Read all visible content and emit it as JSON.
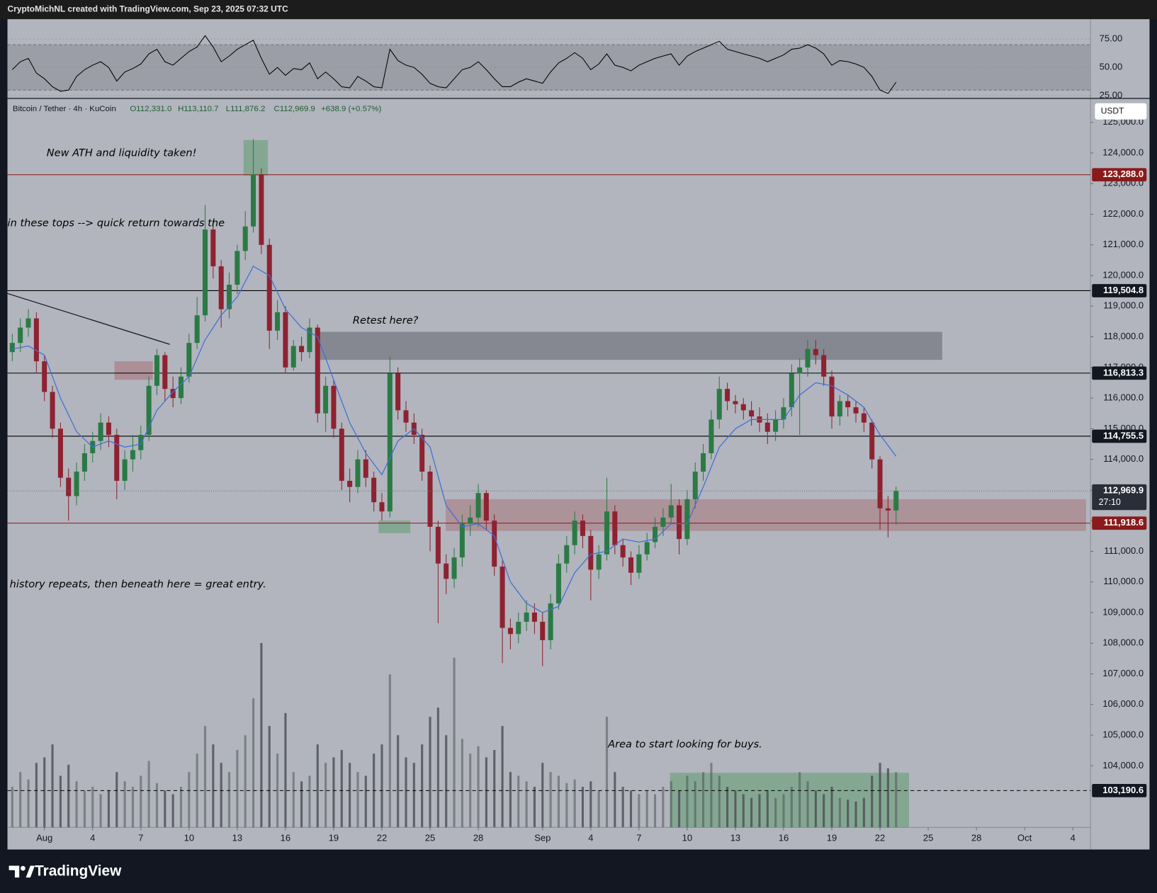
{
  "header": {
    "attribution": "CryptoMichNL created with TradingView.com, Sep 23, 2025 07:32 UTC"
  },
  "chart_data": {
    "type": "candlestick",
    "legend": {
      "symbol": "Bitcoin / Tether · 4h · KuCoin",
      "open": "O112,331.0",
      "high": "H113,110.7",
      "low": "L111,876.2",
      "close": "C112,969.9",
      "change": "+638.9 (+0.57%)"
    },
    "x": [
      -2,
      -1.5,
      -1,
      -0.5,
      0,
      0.5,
      1,
      1.5,
      2,
      2.5,
      3,
      3.5,
      4,
      4.5,
      5,
      5.5,
      6,
      6.5,
      7,
      7.5,
      8,
      8.5,
      9,
      9.5,
      10,
      10.5,
      11,
      11.5,
      12,
      12.5,
      13,
      13.5,
      14,
      14.5,
      15,
      15.5,
      16,
      16.5,
      17,
      17.5,
      18,
      18.5,
      19,
      19.5,
      20,
      20.5,
      21,
      21.5,
      22,
      22.5,
      23,
      23.5,
      24,
      24.5,
      25,
      25.5,
      26,
      26.5,
      27,
      27.5,
      28,
      28.5,
      29,
      29.5,
      30,
      30.5,
      31,
      31.5,
      32,
      32.5,
      33,
      33.5,
      34,
      34.5,
      35,
      35.5,
      36,
      36.5,
      37,
      37.5,
      38,
      38.5,
      39,
      39.5,
      40,
      40.5,
      41,
      41.5,
      42,
      42.5,
      43,
      43.5,
      44,
      44.5,
      45,
      45.5,
      46,
      46.5,
      47,
      47.5,
      48,
      48.5,
      49,
      49.5,
      50,
      50.5,
      51,
      51.5,
      52,
      52.5,
      53
    ],
    "open": [
      117500,
      117800,
      118300,
      118600,
      117200,
      116200,
      115000,
      113400,
      112800,
      113600,
      114200,
      114600,
      115200,
      114800,
      113300,
      114000,
      114300,
      114800,
      116400,
      117400,
      116300,
      116000,
      116700,
      117800,
      118700,
      121500,
      120300,
      118900,
      119700,
      120800,
      121600,
      123300,
      121000,
      118200,
      118800,
      117000,
      117700,
      117500,
      118300,
      115500,
      116400,
      115000,
      113300,
      113100,
      114000,
      113400,
      112600,
      112300,
      116800,
      115600,
      115200,
      114800,
      113600,
      111800,
      110600,
      110100,
      110800,
      111900,
      112100,
      112900,
      112000,
      110500,
      108500,
      108300,
      108700,
      109000,
      108700,
      108100,
      109300,
      110600,
      111200,
      112000,
      111500,
      110400,
      110900,
      112300,
      111200,
      110800,
      110300,
      110900,
      111300,
      111800,
      112100,
      112500,
      111400,
      112700,
      113600,
      114200,
      115300,
      116300,
      115900,
      115800,
      115600,
      115400,
      115200,
      114900,
      115300,
      115700,
      116800,
      117000,
      117600,
      117400,
      116700,
      115400,
      115900,
      115700,
      115500,
      115200,
      114000,
      112400,
      112331
    ],
    "high": [
      118100,
      118600,
      118900,
      118800,
      117400,
      116400,
      115200,
      113700,
      113900,
      114500,
      114900,
      115500,
      115400,
      115000,
      114300,
      114800,
      115100,
      116700,
      117600,
      117500,
      116700,
      117000,
      118100,
      119300,
      122300,
      121800,
      120500,
      120100,
      121000,
      122100,
      124450,
      123500,
      121200,
      119200,
      119000,
      117900,
      118000,
      118600,
      118400,
      116700,
      116600,
      115200,
      113700,
      114300,
      114300,
      113600,
      112900,
      117350,
      117000,
      115900,
      115500,
      115000,
      113800,
      112000,
      110900,
      111100,
      112200,
      112500,
      113200,
      113000,
      112200,
      110700,
      108800,
      109000,
      109400,
      109300,
      109000,
      109600,
      110900,
      111500,
      112300,
      112200,
      111700,
      111200,
      113400,
      112500,
      111400,
      111000,
      111200,
      111600,
      112100,
      112400,
      113200,
      112700,
      113000,
      113900,
      114500,
      115600,
      116700,
      116500,
      116100,
      116000,
      115900,
      115700,
      115500,
      115600,
      116000,
      117100,
      117300,
      117900,
      117900,
      117600,
      116900,
      116100,
      116100,
      115900,
      115700,
      115300,
      114100,
      112800,
      113110.7
    ],
    "low": [
      117200,
      117500,
      118000,
      116800,
      115900,
      114700,
      113100,
      112000,
      112500,
      113300,
      113900,
      114300,
      114400,
      112700,
      113000,
      113600,
      114000,
      114600,
      116100,
      115900,
      115700,
      115800,
      116500,
      117600,
      118500,
      119900,
      118300,
      118600,
      119400,
      120500,
      121400,
      120700,
      117600,
      117900,
      116800,
      116900,
      117200,
      117300,
      115200,
      114900,
      114700,
      113000,
      112600,
      112900,
      113100,
      112300,
      112000,
      112100,
      115300,
      114900,
      114500,
      113300,
      111000,
      108650,
      109600,
      109800,
      110500,
      111500,
      111800,
      111700,
      110200,
      107350,
      107800,
      108000,
      108400,
      108300,
      107250,
      107800,
      109100,
      110300,
      110900,
      111100,
      109400,
      110100,
      110700,
      110900,
      110500,
      109900,
      110100,
      110700,
      111100,
      111500,
      111900,
      110900,
      111200,
      112400,
      113300,
      114000,
      115000,
      115600,
      115500,
      115300,
      115100,
      114900,
      114500,
      114600,
      115000,
      115400,
      114800,
      116700,
      117100,
      116400,
      115000,
      115100,
      115400,
      115200,
      114900,
      113700,
      111700,
      111450,
      111876.2
    ],
    "close": [
      117800,
      118300,
      118600,
      117200,
      116200,
      115000,
      113400,
      112800,
      113600,
      114200,
      114600,
      115200,
      114800,
      113300,
      114000,
      114300,
      114800,
      116400,
      117400,
      116300,
      116000,
      116700,
      117800,
      118700,
      121500,
      120300,
      118900,
      119700,
      120800,
      121600,
      123300,
      121000,
      118200,
      118800,
      117000,
      117700,
      117500,
      118300,
      115500,
      116400,
      115000,
      113300,
      113100,
      114000,
      113400,
      112600,
      112300,
      116800,
      115600,
      115200,
      114800,
      113600,
      111800,
      110600,
      110100,
      110800,
      111900,
      112100,
      112900,
      112000,
      110500,
      108500,
      108300,
      108700,
      109000,
      108700,
      108100,
      109300,
      110600,
      111200,
      112000,
      111500,
      110400,
      110900,
      112300,
      111200,
      110800,
      110300,
      110900,
      111300,
      111800,
      112100,
      112500,
      111400,
      112700,
      113600,
      114200,
      115300,
      116300,
      115900,
      115800,
      115600,
      115400,
      115200,
      114900,
      115300,
      115700,
      116800,
      117000,
      117600,
      117400,
      116700,
      115400,
      115900,
      115700,
      115500,
      115200,
      114000,
      112400,
      112331,
      112969.9
    ],
    "up_color": "#2b7a45",
    "down_color": "#8e2231",
    "xlim": [
      -2.3,
      65.1
    ],
    "xticks": [
      {
        "value": 0,
        "label": "Aug"
      },
      {
        "value": 3,
        "label": "4"
      },
      {
        "value": 6,
        "label": "7"
      },
      {
        "value": 9,
        "label": "10"
      },
      {
        "value": 12,
        "label": "13"
      },
      {
        "value": 15,
        "label": "16"
      },
      {
        "value": 18,
        "label": "19"
      },
      {
        "value": 21,
        "label": "22"
      },
      {
        "value": 24,
        "label": "25"
      },
      {
        "value": 27,
        "label": "28"
      },
      {
        "value": 31,
        "label": "Sep"
      },
      {
        "value": 34,
        "label": "4"
      },
      {
        "value": 37,
        "label": "7"
      },
      {
        "value": 40,
        "label": "10"
      },
      {
        "value": 43,
        "label": "13"
      },
      {
        "value": 46,
        "label": "16"
      },
      {
        "value": 49,
        "label": "19"
      },
      {
        "value": 52,
        "label": "22"
      },
      {
        "value": 55,
        "label": "25"
      },
      {
        "value": 58,
        "label": "28"
      },
      {
        "value": 61,
        "label": "Oct"
      },
      {
        "value": 64,
        "label": "4"
      }
    ],
    "ylim": [
      101990,
      125790
    ],
    "yticks": [
      {
        "value": 104000,
        "label": "104,000.0"
      },
      {
        "value": 105000,
        "label": "105,000.0"
      },
      {
        "value": 106000,
        "label": "106,000.0"
      },
      {
        "value": 107000,
        "label": "107,000.0"
      },
      {
        "value": 108000,
        "label": "108,000.0"
      },
      {
        "value": 109000,
        "label": "109,000.0"
      },
      {
        "value": 110000,
        "label": "110,000.0"
      },
      {
        "value": 111000,
        "label": "111,000.0"
      },
      {
        "value": 112000,
        "label": "112,000.0"
      },
      {
        "value": 113000,
        "label": "113,000.0"
      },
      {
        "value": 114000,
        "label": "114,000.0"
      },
      {
        "value": 115000,
        "label": "115,000.0"
      },
      {
        "value": 116000,
        "label": "116,000.0"
      },
      {
        "value": 117000,
        "label": "117,000.0"
      },
      {
        "value": 118000,
        "label": "118,000.0"
      },
      {
        "value": 119000,
        "label": "119,000.0"
      },
      {
        "value": 120000,
        "label": "120,000.0"
      },
      {
        "value": 121000,
        "label": "121,000.0"
      },
      {
        "value": 122000,
        "label": "122,000.0"
      },
      {
        "value": 123000,
        "label": "123,000.0"
      },
      {
        "value": 124000,
        "label": "124,000.0"
      },
      {
        "value": 125000,
        "label": "125,000.0"
      }
    ],
    "currency": "USDT",
    "price_lines": [
      {
        "value": 123288,
        "label": "123,288.0",
        "color": "#8b1a1a",
        "style": "solid"
      },
      {
        "value": 119504.8,
        "label": "119,504.8",
        "color": "#000000",
        "style": "solid"
      },
      {
        "value": 116813.3,
        "label": "116,813.3",
        "color": "#000000",
        "style": "solid"
      },
      {
        "value": 114755.5,
        "label": "114,755.5",
        "color": "#000000",
        "style": "solid"
      },
      {
        "value": 111918.6,
        "label": "111,918.6",
        "color": "#8b1a1a",
        "style": "solid"
      },
      {
        "value": 103190.6,
        "label": "103,190.6",
        "color": "#000000",
        "style": "dashed"
      }
    ],
    "last_price_label": "112,969.9",
    "countdown": "27:10",
    "ma": {
      "color": "#3f6fd8",
      "x": [
        -2,
        -1,
        0,
        1,
        2,
        3,
        4,
        5,
        6,
        7,
        8,
        9,
        10,
        11,
        12,
        13,
        14,
        15,
        16,
        17,
        18,
        19,
        20,
        21,
        22,
        23,
        24,
        25,
        26,
        27,
        28,
        29,
        30,
        31,
        32,
        33,
        34,
        35,
        36,
        37,
        38,
        39,
        40,
        41,
        42,
        43,
        44,
        45,
        46,
        47,
        48,
        49,
        50,
        51,
        52,
        53
      ],
      "values": [
        117600,
        117700,
        117400,
        116000,
        114900,
        114400,
        114600,
        114400,
        114500,
        115600,
        116200,
        116700,
        117900,
        118700,
        119300,
        120300,
        120000,
        118900,
        118300,
        118000,
        116600,
        115200,
        114200,
        113500,
        114600,
        115000,
        114400,
        112500,
        111800,
        111900,
        111500,
        110000,
        109300,
        109000,
        109200,
        110300,
        110900,
        111000,
        111400,
        111300,
        111400,
        111900,
        111900,
        113100,
        114400,
        115000,
        115300,
        115300,
        115300,
        116100,
        116500,
        116400,
        116100,
        115700,
        114800,
        114100
      ]
    },
    "volume": {
      "color": "#4f525a",
      "ylim": [
        0,
        100
      ],
      "values": [
        22,
        30,
        26,
        35,
        38,
        45,
        28,
        34,
        25,
        20,
        22,
        18,
        20,
        30,
        25,
        22,
        28,
        36,
        24,
        20,
        18,
        22,
        30,
        40,
        55,
        45,
        35,
        30,
        42,
        50,
        70,
        100,
        55,
        40,
        62,
        30,
        25,
        28,
        45,
        35,
        38,
        42,
        35,
        30,
        28,
        40,
        45,
        83,
        50,
        38,
        35,
        45,
        60,
        65,
        50,
        92,
        48,
        40,
        44,
        38,
        42,
        55,
        30,
        28,
        25,
        22,
        35,
        30,
        28,
        24,
        26,
        22,
        25,
        20,
        60,
        30,
        22,
        20,
        18,
        20,
        18,
        22,
        25,
        20,
        28,
        25,
        30,
        35,
        28,
        22,
        20,
        18,
        16,
        18,
        20,
        16,
        18,
        22,
        30,
        25,
        20,
        18,
        22,
        16,
        15,
        14,
        16,
        28,
        35,
        32,
        30
      ]
    },
    "rsi": {
      "color": "#000000",
      "ylim": [
        23,
        92.5
      ],
      "band": [
        30,
        70
      ],
      "yticks": [
        {
          "value": 25,
          "label": "25.00"
        },
        {
          "value": 50,
          "label": "50.00"
        },
        {
          "value": 75,
          "label": "75.00"
        }
      ],
      "values": [
        48,
        55,
        58,
        45,
        40,
        33,
        29,
        30,
        42,
        48,
        52,
        55,
        50,
        38,
        46,
        49,
        53,
        62,
        66,
        55,
        52,
        58,
        64,
        68,
        78,
        68,
        55,
        60,
        66,
        70,
        74,
        58,
        44,
        50,
        43,
        49,
        48,
        54,
        40,
        46,
        40,
        33,
        32,
        42,
        38,
        33,
        32,
        66,
        56,
        52,
        50,
        44,
        36,
        33,
        32,
        40,
        48,
        50,
        55,
        48,
        40,
        33,
        33,
        37,
        40,
        38,
        36,
        46,
        54,
        58,
        63,
        58,
        48,
        53,
        62,
        52,
        50,
        47,
        52,
        55,
        58,
        60,
        62,
        52,
        60,
        64,
        67,
        70,
        73,
        66,
        64,
        62,
        60,
        58,
        55,
        58,
        61,
        66,
        67,
        70,
        67,
        62,
        52,
        56,
        55,
        53,
        50,
        42,
        30,
        27,
        37
      ]
    },
    "annotations": [
      "New ATH and liquidity taken!",
      "in these tops --> quick return towards the",
      "Retest here?",
      "history repeats, then beneath here = great entry.",
      "Area to start looking for buys."
    ]
  },
  "footer": {
    "brand": "TradingView"
  }
}
